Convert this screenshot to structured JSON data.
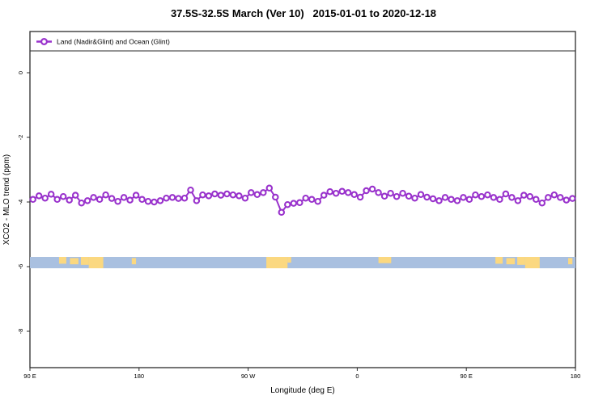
{
  "title": "37.5S-32.5S March (Ver 10)   2015-01-01 to 2020-12-18",
  "legend": {
    "label": "Land (Nadir&Glint) and Ocean (Glint)",
    "marker_color": "#9932cc"
  },
  "axes": {
    "x_label": "Longitude (deg E)",
    "y_label": "XCO2 - MLO trend (ppm)",
    "x_ticks": [
      {
        "pos": 90,
        "label": "90 E"
      },
      {
        "pos": 180,
        "label": "180"
      },
      {
        "pos": 270,
        "label": "90 W"
      },
      {
        "pos": 360,
        "label": "0"
      },
      {
        "pos": 450,
        "label": "90 E"
      },
      {
        "pos": 540,
        "label": "180"
      }
    ],
    "y_ticks": [
      {
        "pos": 0,
        "label": "0"
      },
      {
        "pos": -2,
        "label": "-2"
      },
      {
        "pos": -4,
        "label": "-4"
      },
      {
        "pos": -6,
        "label": "-6"
      },
      {
        "pos": -8,
        "label": "-8"
      }
    ],
    "xlim": [
      90,
      540
    ],
    "ylim": [
      -9.1,
      1.3
    ]
  },
  "chart_data": {
    "type": "line",
    "title": "37.5S-32.5S March (Ver 10)   2015-01-01 to 2020-12-18",
    "xlabel": "Longitude (deg E)",
    "ylabel": "XCO2 - MLO trend (ppm)",
    "grid": false,
    "legend_position": "top-left",
    "series_name": "Land (Nadir&Glint) and Ocean (Glint)",
    "line_color": "#9932cc",
    "marker": "open-circle",
    "x_start": 92.5,
    "x_step": 5,
    "x_unit": "deg E (wraps: 270 = 90 W, 360 = 0, 450 = 90 E, 540 = 180)",
    "values": [
      -3.92,
      -3.81,
      -3.88,
      -3.76,
      -3.92,
      -3.83,
      -3.94,
      -3.79,
      -4.03,
      -3.96,
      -3.86,
      -3.92,
      -3.78,
      -3.89,
      -3.98,
      -3.86,
      -3.94,
      -3.79,
      -3.92,
      -3.98,
      -4.0,
      -3.96,
      -3.88,
      -3.86,
      -3.89,
      -3.88,
      -3.63,
      -3.96,
      -3.78,
      -3.81,
      -3.75,
      -3.79,
      -3.75,
      -3.78,
      -3.81,
      -3.88,
      -3.71,
      -3.77,
      -3.71,
      -3.57,
      -3.85,
      -4.32,
      -4.08,
      -4.04,
      -4.02,
      -3.88,
      -3.92,
      -3.98,
      -3.79,
      -3.68,
      -3.73,
      -3.67,
      -3.71,
      -3.77,
      -3.85,
      -3.65,
      -3.6,
      -3.71,
      -3.82,
      -3.73,
      -3.83,
      -3.73,
      -3.82,
      -3.88,
      -3.77,
      -3.85,
      -3.9,
      -3.96,
      -3.86,
      -3.92,
      -3.96,
      -3.86,
      -3.92,
      -3.78,
      -3.83,
      -3.78,
      -3.86,
      -3.92,
      -3.75,
      -3.86,
      -3.96,
      -3.79,
      -3.83,
      -3.92,
      -4.03,
      -3.86,
      -3.78,
      -3.86,
      -3.94,
      -3.89
    ],
    "map_band": {
      "description": "latitude-strip world map (ocean/land) drawn across plot",
      "y_top_ppm": -5.7,
      "y_bottom_ppm": -6.05,
      "ocean_color": "#a9c0e0",
      "land_color": "#fbd880",
      "land_patches": [
        {
          "x0": 114,
          "x1": 120,
          "top": 0.0,
          "h": 0.6
        },
        {
          "x0": 123,
          "x1": 130,
          "top": 0.1,
          "h": 0.55
        },
        {
          "x0": 132,
          "x1": 138.5,
          "top": 0.0,
          "h": 0.7
        },
        {
          "x0": 138.5,
          "x1": 150.5,
          "top": 0.0,
          "h": 1.0
        },
        {
          "x0": 174,
          "x1": 177.5,
          "top": 0.1,
          "h": 0.55
        },
        {
          "x0": 285,
          "x1": 302.5,
          "top": 0.0,
          "h": 1.0
        },
        {
          "x0": 302.5,
          "x1": 305.5,
          "top": 0.0,
          "h": 0.5
        },
        {
          "x0": 377.5,
          "x1": 388,
          "top": 0.0,
          "h": 0.55
        },
        {
          "x0": 474,
          "x1": 480,
          "top": 0.0,
          "h": 0.6
        },
        {
          "x0": 483,
          "x1": 490,
          "top": 0.1,
          "h": 0.55
        },
        {
          "x0": 492,
          "x1": 498.5,
          "top": 0.0,
          "h": 0.7
        },
        {
          "x0": 498.5,
          "x1": 510.5,
          "top": 0.0,
          "h": 1.0
        },
        {
          "x0": 534,
          "x1": 537.5,
          "top": 0.1,
          "h": 0.55
        }
      ]
    }
  },
  "colors": {
    "accent_purple": "#9932cc",
    "ocean_blue": "#a9c0e0",
    "land_yellow": "#fbd880",
    "axis_black": "#2b2b2b"
  }
}
